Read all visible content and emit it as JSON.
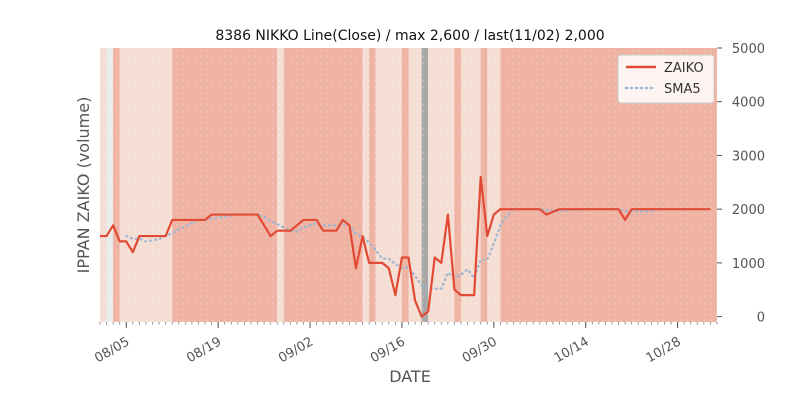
{
  "chart_data": {
    "type": "line",
    "title": "8386 NIKKO Line(Close) / max 2,600 / last(11/02) 2,000",
    "xlabel": "DATE",
    "ylabel": "IPPAN ZAIKO (volume)",
    "ylim": [
      -100,
      5000
    ],
    "yticks": [
      0,
      1000,
      2000,
      3000,
      4000,
      5000
    ],
    "ytick_labels": [
      "0",
      "1000",
      "2000",
      "3000",
      "4000",
      "5000"
    ],
    "xlim": [
      "2024-08-01",
      "2024-11-03"
    ],
    "xticks": [
      {
        "date": "2024-08-05",
        "label": "08/05"
      },
      {
        "date": "2024-08-19",
        "label": "08/19"
      },
      {
        "date": "2024-09-02",
        "label": "09/02"
      },
      {
        "date": "2024-09-16",
        "label": "09/16"
      },
      {
        "date": "2024-09-30",
        "label": "09/30"
      },
      {
        "date": "2024-10-14",
        "label": "10/14"
      },
      {
        "date": "2024-10-28",
        "label": "10/28"
      }
    ],
    "grid": false,
    "legend_position": "top-right",
    "colors": {
      "zaiko": "#e24a33",
      "sma": "#9db7d3",
      "band_dark": "#eeb3a3",
      "band_light": "#f5ded4",
      "band_gray": "#a8a8a8",
      "plot_bg": "#ebebeb"
    },
    "x": [
      "2024-08-01",
      "2024-08-02",
      "2024-08-03",
      "2024-08-04",
      "2024-08-05",
      "2024-08-06",
      "2024-08-07",
      "2024-08-08",
      "2024-08-09",
      "2024-08-10",
      "2024-08-11",
      "2024-08-12",
      "2024-08-13",
      "2024-08-14",
      "2024-08-15",
      "2024-08-16",
      "2024-08-17",
      "2024-08-18",
      "2024-08-19",
      "2024-08-20",
      "2024-08-21",
      "2024-08-22",
      "2024-08-23",
      "2024-08-24",
      "2024-08-25",
      "2024-08-26",
      "2024-08-27",
      "2024-08-28",
      "2024-08-29",
      "2024-08-30",
      "2024-08-31",
      "2024-09-01",
      "2024-09-02",
      "2024-09-03",
      "2024-09-04",
      "2024-09-05",
      "2024-09-06",
      "2024-09-07",
      "2024-09-08",
      "2024-09-09",
      "2024-09-10",
      "2024-09-11",
      "2024-09-12",
      "2024-09-13",
      "2024-09-14",
      "2024-09-15",
      "2024-09-16",
      "2024-09-17",
      "2024-09-18",
      "2024-09-19",
      "2024-09-20",
      "2024-09-21",
      "2024-09-22",
      "2024-09-23",
      "2024-09-24",
      "2024-09-25",
      "2024-09-26",
      "2024-09-27",
      "2024-09-28",
      "2024-09-29",
      "2024-09-30",
      "2024-10-01",
      "2024-10-02",
      "2024-10-03",
      "2024-10-04",
      "2024-10-05",
      "2024-10-06",
      "2024-10-07",
      "2024-10-08",
      "2024-10-09",
      "2024-10-10",
      "2024-10-11",
      "2024-10-12",
      "2024-10-13",
      "2024-10-14",
      "2024-10-15",
      "2024-10-16",
      "2024-10-17",
      "2024-10-18",
      "2024-10-19",
      "2024-10-20",
      "2024-10-21",
      "2024-10-22",
      "2024-10-23",
      "2024-10-24",
      "2024-10-25",
      "2024-10-26",
      "2024-10-27",
      "2024-10-28",
      "2024-10-29",
      "2024-10-30",
      "2024-10-31",
      "2024-11-01",
      "2024-11-02"
    ],
    "series": [
      {
        "name": "ZAIKO",
        "values": [
          1500,
          1500,
          1700,
          1400,
          1400,
          1200,
          1500,
          1500,
          1500,
          1500,
          1500,
          1800,
          1800,
          1800,
          1800,
          1800,
          1800,
          1900,
          1900,
          1900,
          1900,
          1900,
          1900,
          1900,
          1900,
          1700,
          1500,
          1600,
          1600,
          1600,
          1700,
          1800,
          1800,
          1800,
          1600,
          1600,
          1600,
          1800,
          1700,
          900,
          1500,
          1000,
          1000,
          1000,
          900,
          400,
          1100,
          1100,
          300,
          0,
          100,
          1100,
          1000,
          1900,
          500,
          400,
          400,
          400,
          2600,
          1500,
          1900,
          2000,
          2000,
          2000,
          2000,
          2000,
          2000,
          2000,
          1900,
          1950,
          2000,
          2000,
          2000,
          2000,
          2000,
          2000,
          2000,
          2000,
          2000,
          2000,
          1800,
          2000,
          2000,
          2000,
          2000,
          2000,
          2000,
          2000,
          2000,
          2000,
          2000,
          2000,
          2000,
          2000
        ]
      },
      {
        "name": "SMA5",
        "values": [
          null,
          null,
          null,
          null,
          1500,
          1450,
          1450,
          1400,
          1420,
          1440,
          1500,
          1560,
          1620,
          1680,
          1740,
          1800,
          1800,
          1820,
          1840,
          1860,
          1880,
          1900,
          1900,
          1900,
          1900,
          1860,
          1780,
          1720,
          1660,
          1600,
          1580,
          1660,
          1700,
          1740,
          1700,
          1700,
          1700,
          1720,
          1700,
          1540,
          1480,
          1380,
          1240,
          1080,
          1080,
          980,
          900,
          920,
          760,
          580,
          520,
          520,
          520,
          820,
          720,
          780,
          880,
          720,
          1060,
          1060,
          1360,
          1700,
          1880,
          2000,
          2000,
          2000,
          2000,
          2000,
          1980,
          1970,
          1970,
          1970,
          1990,
          1990,
          2000,
          2000,
          2000,
          2000,
          2000,
          2000,
          1960,
          1960,
          1960,
          1960,
          1960,
          2000,
          2000,
          2000,
          2000,
          2000,
          2000,
          2000,
          2000,
          2000
        ]
      }
    ],
    "bands": [
      {
        "start": "2024-08-01",
        "end": "2024-08-02",
        "level": "light"
      },
      {
        "start": "2024-08-03",
        "end": "2024-08-04",
        "level": "dark"
      },
      {
        "start": "2024-08-04",
        "end": "2024-08-12",
        "level": "light"
      },
      {
        "start": "2024-08-12",
        "end": "2024-08-28",
        "level": "dark"
      },
      {
        "start": "2024-08-28",
        "end": "2024-08-29",
        "level": "light"
      },
      {
        "start": "2024-08-29",
        "end": "2024-09-10",
        "level": "dark"
      },
      {
        "start": "2024-09-10",
        "end": "2024-09-11",
        "level": "light"
      },
      {
        "start": "2024-09-11",
        "end": "2024-09-12",
        "level": "dark"
      },
      {
        "start": "2024-09-12",
        "end": "2024-09-16",
        "level": "light"
      },
      {
        "start": "2024-09-16",
        "end": "2024-09-17",
        "level": "dark"
      },
      {
        "start": "2024-09-17",
        "end": "2024-09-19",
        "level": "light"
      },
      {
        "start": "2024-09-19",
        "end": "2024-09-20",
        "level": "gray"
      },
      {
        "start": "2024-09-20",
        "end": "2024-09-24",
        "level": "light"
      },
      {
        "start": "2024-09-24",
        "end": "2024-09-25",
        "level": "dark"
      },
      {
        "start": "2024-09-25",
        "end": "2024-09-28",
        "level": "light"
      },
      {
        "start": "2024-09-28",
        "end": "2024-09-29",
        "level": "dark"
      },
      {
        "start": "2024-09-29",
        "end": "2024-10-01",
        "level": "light"
      },
      {
        "start": "2024-10-01",
        "end": "2024-11-03",
        "level": "dark"
      }
    ]
  },
  "legend": {
    "zaiko_label": "ZAIKO",
    "sma_label": "SMA5"
  }
}
